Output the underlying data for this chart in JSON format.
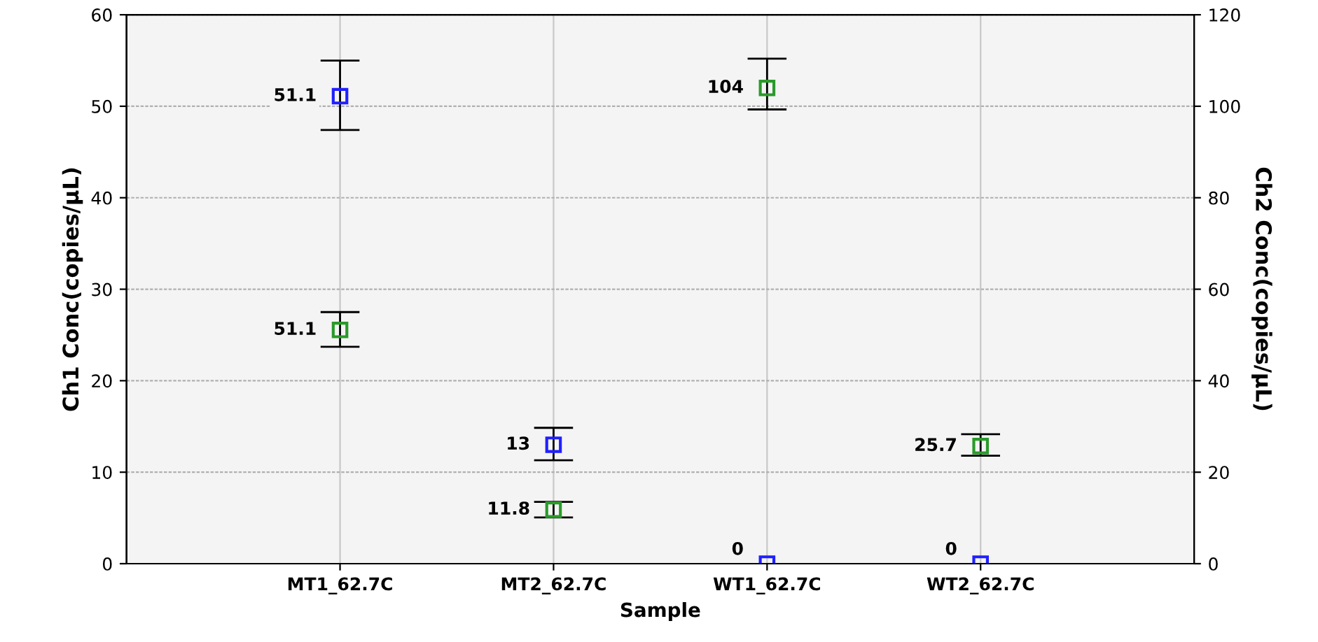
{
  "chart_data": {
    "type": "scatter",
    "xlabel": "Sample",
    "ylabel": "Ch1 Conc(copies/µL)",
    "y2label": "Ch2 Conc(copies/µL)",
    "categories": [
      "MT1_62.7C",
      "MT2_62.7C",
      "WT1_62.7C",
      "WT2_62.7C"
    ],
    "series": [
      {
        "color": "#2020ff",
        "values": [
          51.1,
          13,
          0,
          0
        ],
        "errors": [
          [
            47.4,
            55
          ],
          [
            11.3,
            14.85
          ],
          null,
          null
        ]
      },
      {
        "color": "#2a9a2a",
        "axis": "y2",
        "values": [
          51.1,
          11.8,
          104,
          25.7
        ],
        "errors": [
          [
            47.4,
            55
          ],
          [
            10.1,
            13.5
          ],
          [
            99.3,
            110.4
          ],
          [
            23.6,
            28.3
          ]
        ]
      }
    ],
    "ylim": [
      0,
      60
    ],
    "yticks": [
      0,
      10,
      20,
      30,
      40,
      50,
      60
    ],
    "y2lim": [
      0,
      120
    ],
    "y2ticks": [
      0,
      20,
      40,
      60,
      80,
      100,
      120
    ],
    "grid": true,
    "marker": "square",
    "data_labels": true
  }
}
